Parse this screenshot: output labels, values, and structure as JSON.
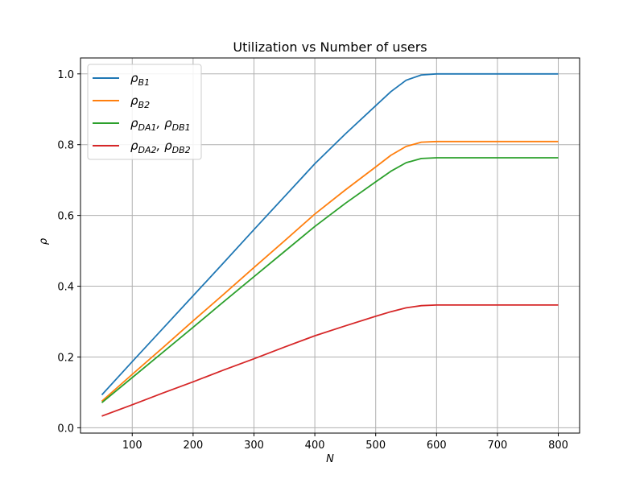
{
  "chart_data": {
    "type": "line",
    "title": "Utilization vs Number of users",
    "xlabel": "N",
    "ylabel": "ρ",
    "xlim": [
      15,
      835
    ],
    "ylim": [
      -0.015,
      1.045
    ],
    "xticks": [
      100,
      200,
      300,
      400,
      500,
      600,
      700,
      800
    ],
    "yticks": [
      0.0,
      0.2,
      0.4,
      0.6,
      0.8,
      1.0
    ],
    "xtick_labels": [
      "100",
      "200",
      "300",
      "400",
      "500",
      "600",
      "700",
      "800"
    ],
    "ytick_labels": [
      "0.0",
      "0.2",
      "0.4",
      "0.6",
      "0.8",
      "1.0"
    ],
    "grid": true,
    "legend_position": "top-left",
    "x": [
      50,
      100,
      150,
      200,
      250,
      300,
      350,
      400,
      450,
      500,
      525,
      550,
      575,
      600,
      650,
      700,
      750,
      800
    ],
    "series": [
      {
        "label_parts": [
          {
            "t": "ρ"
          },
          {
            "t": "B1",
            "sub": true
          }
        ],
        "color": "#1f77b4",
        "values": [
          0.093,
          0.187,
          0.28,
          0.373,
          0.466,
          0.56,
          0.653,
          0.746,
          0.83,
          0.91,
          0.95,
          0.982,
          0.997,
          1.0,
          1.0,
          1.0,
          1.0,
          1.0
        ]
      },
      {
        "label_parts": [
          {
            "t": "ρ"
          },
          {
            "t": "B2",
            "sub": true
          }
        ],
        "color": "#ff7f0e",
        "values": [
          0.075,
          0.151,
          0.226,
          0.302,
          0.377,
          0.453,
          0.528,
          0.604,
          0.672,
          0.737,
          0.77,
          0.795,
          0.807,
          0.809,
          0.809,
          0.809,
          0.809,
          0.809
        ]
      },
      {
        "label_parts": [
          {
            "t": "ρ"
          },
          {
            "t": "DA1",
            "sub": true
          },
          {
            "t": ", ρ"
          },
          {
            "t": "DB1",
            "sub": true
          }
        ],
        "color": "#2ca02c",
        "values": [
          0.071,
          0.142,
          0.213,
          0.284,
          0.356,
          0.427,
          0.498,
          0.569,
          0.634,
          0.695,
          0.725,
          0.749,
          0.761,
          0.763,
          0.763,
          0.763,
          0.763,
          0.763
        ]
      },
      {
        "label_parts": [
          {
            "t": "ρ"
          },
          {
            "t": "DA2",
            "sub": true
          },
          {
            "t": ", ρ"
          },
          {
            "t": "DB2",
            "sub": true
          }
        ],
        "color": "#d62728",
        "values": [
          0.033,
          0.065,
          0.098,
          0.13,
          0.163,
          0.195,
          0.228,
          0.26,
          0.288,
          0.315,
          0.328,
          0.339,
          0.345,
          0.347,
          0.347,
          0.347,
          0.347,
          0.347
        ]
      }
    ]
  }
}
